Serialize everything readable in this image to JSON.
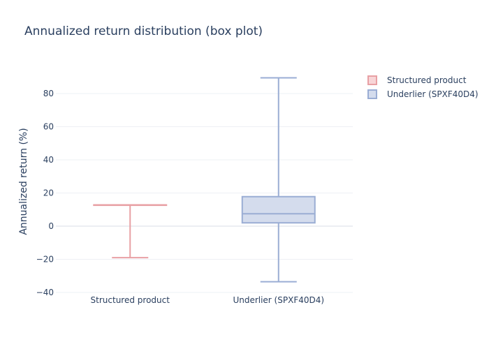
{
  "chart_data": {
    "type": "box",
    "title": "Annualized return distribution (box plot)",
    "xlabel": "",
    "ylabel": "Annualized return (%)",
    "ylim": [
      -40,
      96
    ],
    "yticks": [
      -40,
      -20,
      0,
      20,
      40,
      60,
      80
    ],
    "categories": [
      "Structured product",
      "Underlier (SPXF40D4)"
    ],
    "grid": true,
    "legend_position": "top-right",
    "series": [
      {
        "name": "Structured product",
        "color": "#e8a0a4",
        "fill": "#f8d5d7",
        "min": -19,
        "q1": 12.8,
        "median": 12.8,
        "q3": 12.8,
        "max": 12.8
      },
      {
        "name": "Underlier (SPXF40D4)",
        "color": "#9aadd4",
        "fill": "#d4dced",
        "min": -33.5,
        "q1": 2,
        "median": 7.5,
        "q3": 17.8,
        "max": 89.5
      }
    ]
  }
}
